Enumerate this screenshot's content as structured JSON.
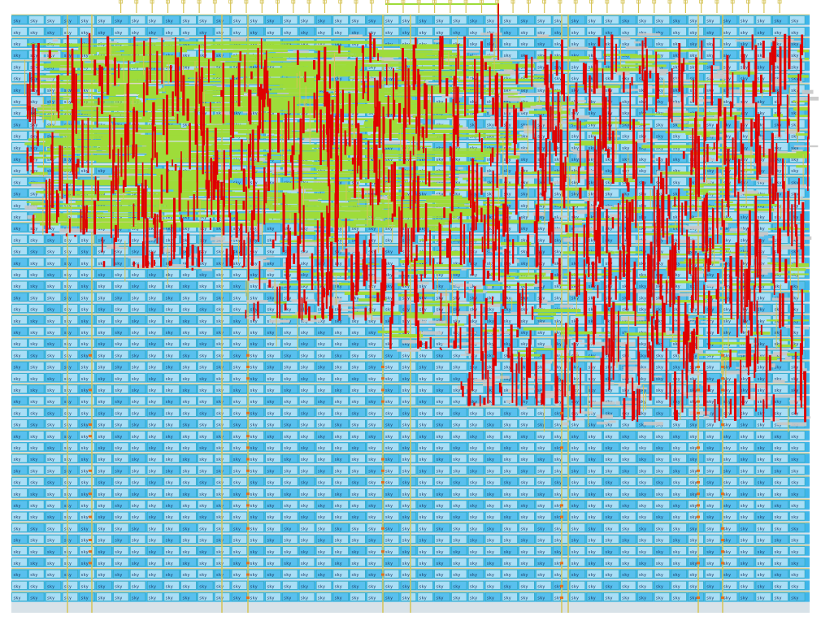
{
  "view": {
    "kind": "ic-physical-layout",
    "region": "standard-cell placement with dense routing in the upper half",
    "cell_label_text": "sky",
    "colors": {
      "background": "#ffffff",
      "cell_fill": "#3fb6ea",
      "cell_fill_alt": "#6fc9f0",
      "cell_text": "#1a3a66",
      "row_gap_bg": "#d8e2e8",
      "metal_horizontal": "#9edc3a",
      "metal_vertical": "#e00000",
      "metal_grey": "#c8c8c8",
      "pin_orange": "#e07020",
      "stripe_yellow": "#d6c455",
      "outline_teal": "#2aa0a0"
    }
  }
}
